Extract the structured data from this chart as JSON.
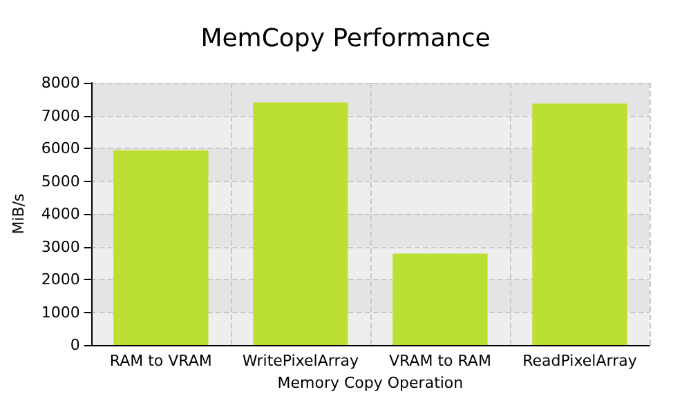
{
  "chart_data": {
    "type": "bar",
    "title": "MemCopy Performance",
    "xlabel": "Memory Copy Operation",
    "ylabel": "MiB/s",
    "categories": [
      "RAM to VRAM",
      "WritePixelArray",
      "VRAM to RAM",
      "ReadPixelArray"
    ],
    "values": [
      5940,
      7400,
      2790,
      7370
    ],
    "color": "#bce032",
    "ylim": [
      0,
      8000
    ],
    "yticks": [
      0,
      1000,
      2000,
      3000,
      4000,
      5000,
      6000,
      7000,
      8000
    ],
    "grid": true
  }
}
